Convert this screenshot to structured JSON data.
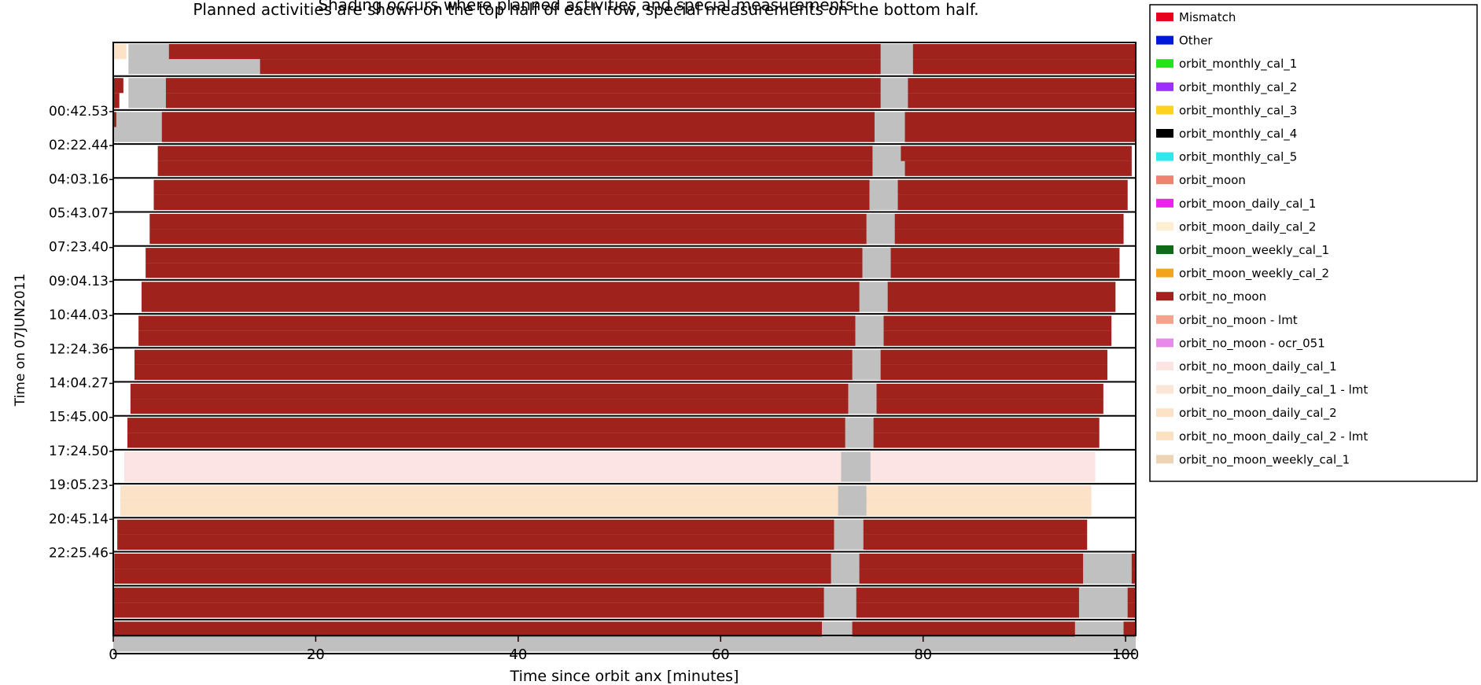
{
  "chart_data": {
    "type": "timeline",
    "title": "Planned activities are shown on the top half of each row, special measurements on the bottom half.",
    "title_partial_line": "Shading occurs where planned activities and special measurements",
    "xlabel": "Time since orbit anx [minutes]",
    "ylabel": "Time on 07JUN2011",
    "xlim": [
      0,
      101
    ],
    "xticks": [
      0,
      20,
      40,
      60,
      80,
      100
    ],
    "xtick_labels": [
      "0",
      "20",
      "40",
      "60",
      "80",
      "100"
    ],
    "ytick_labels": [
      "00:42.53",
      "02:22.44",
      "04:03.16",
      "05:43.07",
      "07:23.40",
      "09:04.13",
      "10:44.03",
      "12:24.36",
      "14:04.27",
      "15:45.00",
      "17:24.50",
      "19:05.23",
      "20:45.14",
      "22:25.46"
    ],
    "legend_position": "right",
    "legend": [
      {
        "name": "Mismatch",
        "color": "#e8001c"
      },
      {
        "name": "Other",
        "color": "#0018d8"
      },
      {
        "name": "orbit_monthly_cal_1",
        "color": "#22e322"
      },
      {
        "name": "orbit_monthly_cal_2",
        "color": "#9b30ff"
      },
      {
        "name": "orbit_monthly_cal_3",
        "color": "#ffd21f"
      },
      {
        "name": "orbit_monthly_cal_4",
        "color": "#000000"
      },
      {
        "name": "orbit_monthly_cal_5",
        "color": "#2ee8ee"
      },
      {
        "name": "orbit_moon",
        "color": "#f08272"
      },
      {
        "name": "orbit_moon_daily_cal_1",
        "color": "#ee22ee"
      },
      {
        "name": "orbit_moon_daily_cal_2",
        "color": "#fdf0d2"
      },
      {
        "name": "orbit_moon_weekly_cal_1",
        "color": "#0f6b17"
      },
      {
        "name": "orbit_moon_weekly_cal_2",
        "color": "#f2a51c"
      },
      {
        "name": "orbit_no_moon",
        "color": "#a0221d"
      },
      {
        "name": "orbit_no_moon - lmt",
        "color": "#f4a48c"
      },
      {
        "name": "orbit_no_moon - ocr_051",
        "color": "#e88ae8"
      },
      {
        "name": "orbit_no_moon_daily_cal_1",
        "color": "#fbe4e2"
      },
      {
        "name": "orbit_no_moon_daily_cal_1 - lmt",
        "color": "#f9e6d6"
      },
      {
        "name": "orbit_no_moon_daily_cal_2",
        "color": "#fce3c8"
      },
      {
        "name": "orbit_no_moon_daily_cal_2 - lmt",
        "color": "#fbe1bf"
      },
      {
        "name": "orbit_no_moon_weekly_cal_1",
        "color": "#ecd4b4"
      }
    ],
    "background_fill": "#c0c0c0",
    "rows": [
      {
        "top": [
          {
            "s": 0,
            "e": 1.3,
            "c": "#fce3c8"
          },
          {
            "s": 5.5,
            "e": 75.8,
            "c": "#a0221d"
          },
          {
            "s": 79,
            "e": 101,
            "c": "#a0221d"
          }
        ],
        "bottom": [
          {
            "s": 14.5,
            "e": 75.8,
            "c": "#a0221d"
          },
          {
            "s": 79,
            "e": 101,
            "c": "#a0221d"
          }
        ]
      },
      {
        "top": [
          {
            "s": 0,
            "e": 1.0,
            "c": "#a0221d"
          },
          {
            "s": 5.2,
            "e": 75.8,
            "c": "#a0221d"
          },
          {
            "s": 78.5,
            "e": 101,
            "c": "#a0221d"
          }
        ],
        "bottom": [
          {
            "s": 0,
            "e": 0.6,
            "c": "#a0221d"
          },
          {
            "s": 5.2,
            "e": 75.8,
            "c": "#a0221d"
          },
          {
            "s": 78.5,
            "e": 101,
            "c": "#a0221d"
          }
        ]
      },
      {
        "top": [
          {
            "s": 0,
            "e": 0.3,
            "c": "#a0221d"
          },
          {
            "s": 4.8,
            "e": 75.2,
            "c": "#a0221d"
          },
          {
            "s": 78.2,
            "e": 101,
            "c": "#a0221d"
          }
        ],
        "bottom": [
          {
            "s": 4.8,
            "e": 75.2,
            "c": "#a0221d"
          },
          {
            "s": 78.2,
            "e": 101,
            "c": "#a0221d"
          }
        ]
      },
      {
        "top": [
          {
            "s": 4.4,
            "e": 75.0,
            "c": "#a0221d"
          },
          {
            "s": 77.8,
            "e": 100.6,
            "c": "#a0221d"
          }
        ],
        "bottom": [
          {
            "s": 4.4,
            "e": 75.0,
            "c": "#a0221d"
          },
          {
            "s": 78.2,
            "e": 100.6,
            "c": "#a0221d"
          }
        ]
      },
      {
        "top": [
          {
            "s": 4.0,
            "e": 74.7,
            "c": "#a0221d"
          },
          {
            "s": 77.5,
            "e": 100.2,
            "c": "#a0221d"
          }
        ],
        "bottom": [
          {
            "s": 4.0,
            "e": 74.7,
            "c": "#a0221d"
          },
          {
            "s": 77.5,
            "e": 100.2,
            "c": "#a0221d"
          }
        ]
      },
      {
        "top": [
          {
            "s": 3.6,
            "e": 74.4,
            "c": "#a0221d"
          },
          {
            "s": 77.2,
            "e": 99.8,
            "c": "#a0221d"
          }
        ],
        "bottom": [
          {
            "s": 3.6,
            "e": 74.4,
            "c": "#a0221d"
          },
          {
            "s": 77.2,
            "e": 99.8,
            "c": "#a0221d"
          }
        ]
      },
      {
        "top": [
          {
            "s": 3.2,
            "e": 74.0,
            "c": "#a0221d"
          },
          {
            "s": 76.8,
            "e": 99.4,
            "c": "#a0221d"
          }
        ],
        "bottom": [
          {
            "s": 3.2,
            "e": 74.0,
            "c": "#a0221d"
          },
          {
            "s": 76.8,
            "e": 99.4,
            "c": "#a0221d"
          }
        ]
      },
      {
        "top": [
          {
            "s": 2.8,
            "e": 73.7,
            "c": "#a0221d"
          },
          {
            "s": 76.5,
            "e": 99.0,
            "c": "#a0221d"
          }
        ],
        "bottom": [
          {
            "s": 2.8,
            "e": 73.7,
            "c": "#a0221d"
          },
          {
            "s": 76.5,
            "e": 99.0,
            "c": "#a0221d"
          }
        ]
      },
      {
        "top": [
          {
            "s": 2.5,
            "e": 73.3,
            "c": "#a0221d"
          },
          {
            "s": 76.1,
            "e": 98.6,
            "c": "#a0221d"
          }
        ],
        "bottom": [
          {
            "s": 2.5,
            "e": 73.3,
            "c": "#a0221d"
          },
          {
            "s": 76.1,
            "e": 98.6,
            "c": "#a0221d"
          }
        ]
      },
      {
        "top": [
          {
            "s": 2.1,
            "e": 73.0,
            "c": "#a0221d"
          },
          {
            "s": 75.8,
            "e": 98.2,
            "c": "#a0221d"
          }
        ],
        "bottom": [
          {
            "s": 2.1,
            "e": 73.0,
            "c": "#a0221d"
          },
          {
            "s": 75.8,
            "e": 98.2,
            "c": "#a0221d"
          }
        ]
      },
      {
        "top": [
          {
            "s": 1.7,
            "e": 72.6,
            "c": "#a0221d"
          },
          {
            "s": 75.4,
            "e": 97.8,
            "c": "#a0221d"
          }
        ],
        "bottom": [
          {
            "s": 1.7,
            "e": 72.6,
            "c": "#a0221d"
          },
          {
            "s": 75.4,
            "e": 97.8,
            "c": "#a0221d"
          }
        ]
      },
      {
        "top": [
          {
            "s": 1.4,
            "e": 72.3,
            "c": "#a0221d"
          },
          {
            "s": 75.1,
            "e": 97.4,
            "c": "#a0221d"
          }
        ],
        "bottom": [
          {
            "s": 1.4,
            "e": 72.3,
            "c": "#a0221d"
          },
          {
            "s": 75.1,
            "e": 97.4,
            "c": "#a0221d"
          }
        ]
      },
      {
        "top": [
          {
            "s": 1.1,
            "e": 71.9,
            "c": "#fbe4e2"
          },
          {
            "s": 74.8,
            "e": 97.0,
            "c": "#fbe4e2"
          }
        ],
        "bottom": [
          {
            "s": 1.1,
            "e": 71.9,
            "c": "#fbe4e2"
          },
          {
            "s": 74.8,
            "e": 97.0,
            "c": "#fbe4e2"
          }
        ]
      },
      {
        "top": [
          {
            "s": 0.7,
            "e": 71.6,
            "c": "#fce3c8"
          },
          {
            "s": 74.4,
            "e": 96.6,
            "c": "#fce3c8"
          }
        ],
        "bottom": [
          {
            "s": 0.7,
            "e": 71.6,
            "c": "#fce3c8"
          },
          {
            "s": 74.4,
            "e": 96.6,
            "c": "#fce3c8"
          }
        ]
      },
      {
        "top": [
          {
            "s": 0.4,
            "e": 71.2,
            "c": "#a0221d"
          },
          {
            "s": 74.1,
            "e": 96.2,
            "c": "#a0221d"
          }
        ],
        "bottom": [
          {
            "s": 0.4,
            "e": 71.2,
            "c": "#a0221d"
          },
          {
            "s": 74.1,
            "e": 96.2,
            "c": "#a0221d"
          }
        ]
      },
      {
        "top": [
          {
            "s": 0.1,
            "e": 70.9,
            "c": "#a0221d"
          },
          {
            "s": 73.7,
            "e": 95.8,
            "c": "#a0221d"
          },
          {
            "s": 100.6,
            "e": 101,
            "c": "#a0221d"
          }
        ],
        "bottom": [
          {
            "s": 0.1,
            "e": 70.9,
            "c": "#a0221d"
          },
          {
            "s": 73.7,
            "e": 95.8,
            "c": "#a0221d"
          },
          {
            "s": 100.6,
            "e": 101,
            "c": "#a0221d"
          }
        ]
      },
      {
        "top": [
          {
            "s": 0,
            "e": 70.2,
            "c": "#a0221d"
          },
          {
            "s": 73.4,
            "e": 95.4,
            "c": "#a0221d"
          },
          {
            "s": 100.2,
            "e": 101,
            "c": "#a0221d"
          }
        ],
        "bottom": [
          {
            "s": 0,
            "e": 70.2,
            "c": "#a0221d"
          },
          {
            "s": 73.4,
            "e": 95.4,
            "c": "#a0221d"
          },
          {
            "s": 100.2,
            "e": 101,
            "c": "#a0221d"
          }
        ]
      },
      {
        "top": [
          {
            "s": 0,
            "e": 70.0,
            "c": "#a0221d"
          },
          {
            "s": 73.0,
            "e": 95.0,
            "c": "#a0221d"
          },
          {
            "s": 99.8,
            "e": 101,
            "c": "#a0221d"
          }
        ],
        "bottom": []
      }
    ]
  }
}
